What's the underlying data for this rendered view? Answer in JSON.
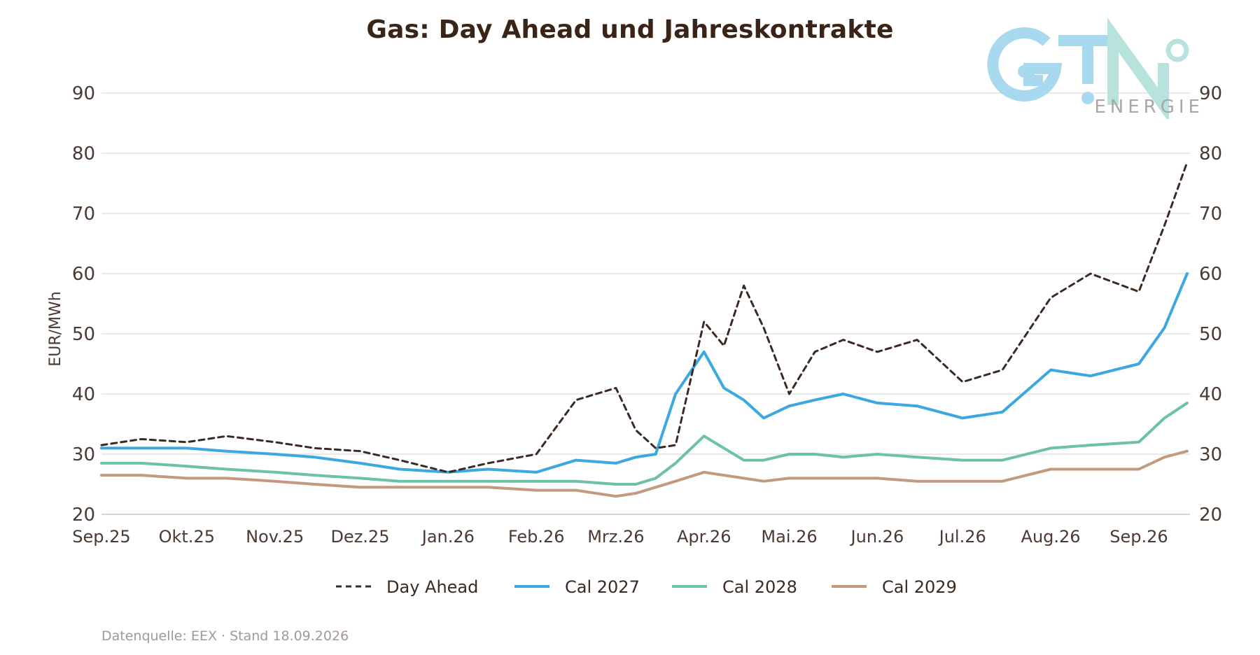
{
  "chart_data": {
    "type": "line",
    "title": "Gas: Day Ahead und Jahreskontrakte",
    "ylabel": "EUR/MWh",
    "ylim": [
      20,
      90
    ],
    "yticks": [
      90,
      80,
      70,
      60,
      50,
      40,
      30,
      20
    ],
    "secondary_y_axis": true,
    "grid": "horizontal",
    "legend_position": "bottom",
    "x_tick_labels": [
      "Sep.25",
      "Okt.25",
      "Nov.25",
      "Dez.25",
      "Jan.26",
      "Feb.26",
      "Mrz.26",
      "Apr.26",
      "Mai.26",
      "Jun.26",
      "Jul.26",
      "Aug.26",
      "Sep.26"
    ],
    "x": [
      "2025-09-01",
      "2025-09-15",
      "2025-10-01",
      "2025-10-15",
      "2025-11-01",
      "2025-11-15",
      "2025-12-01",
      "2025-12-15",
      "2026-01-01",
      "2026-01-15",
      "2026-02-01",
      "2026-02-15",
      "2026-03-01",
      "2026-03-08",
      "2026-03-15",
      "2026-03-22",
      "2026-04-01",
      "2026-04-08",
      "2026-04-15",
      "2026-04-22",
      "2026-05-01",
      "2026-05-10",
      "2026-05-20",
      "2026-06-01",
      "2026-06-15",
      "2026-07-01",
      "2026-07-15",
      "2026-08-01",
      "2026-08-15",
      "2026-09-01",
      "2026-09-10",
      "2026-09-18"
    ],
    "series": [
      {
        "name": "Day Ahead",
        "color": "#3b2a22",
        "style": "dashed",
        "values": [
          31.5,
          32.5,
          32,
          33,
          32,
          31,
          30.5,
          29,
          27,
          28.5,
          30,
          39,
          41,
          34,
          31,
          31.5,
          52,
          48,
          58,
          51,
          40,
          47,
          49,
          47,
          49,
          42,
          44,
          56,
          60,
          57,
          68,
          78.5
        ]
      },
      {
        "name": "Cal 2027",
        "color": "#3ba8e0",
        "style": "solid",
        "values": [
          31,
          31,
          31,
          30.5,
          30,
          29.5,
          28.5,
          27.5,
          27,
          27.5,
          27,
          29,
          28.5,
          29.5,
          30,
          40,
          47,
          41,
          39,
          36,
          38,
          39,
          40,
          38.5,
          38,
          36,
          37,
          44,
          43,
          45,
          51,
          60
        ]
      },
      {
        "name": "Cal 2028",
        "color": "#6cc1a6",
        "style": "solid",
        "values": [
          28.5,
          28.5,
          28,
          27.5,
          27,
          26.5,
          26,
          25.5,
          25.5,
          25.5,
          25.5,
          25.5,
          25,
          25,
          26,
          28.5,
          33,
          31,
          29,
          29,
          30,
          30,
          29.5,
          30,
          29.5,
          29,
          29,
          31,
          31.5,
          32,
          36,
          38.5
        ]
      },
      {
        "name": "Cal 2029",
        "color": "#c49a7f",
        "style": "solid",
        "values": [
          26.5,
          26.5,
          26,
          26,
          25.5,
          25,
          24.5,
          24.5,
          24.5,
          24.5,
          24,
          24,
          23,
          23.5,
          24.5,
          25.5,
          27,
          26.5,
          26,
          25.5,
          26,
          26,
          26,
          26,
          25.5,
          25.5,
          25.5,
          27.5,
          27.5,
          27.5,
          29.5,
          30.5
        ]
      }
    ]
  },
  "source_note": "Datenquelle: EEX · Stand 18.09.2026",
  "logo": {
    "word": "GTN",
    "sub": "ENERGIE",
    "colors": [
      "#a9d9ef",
      "#b8e2dc"
    ]
  }
}
